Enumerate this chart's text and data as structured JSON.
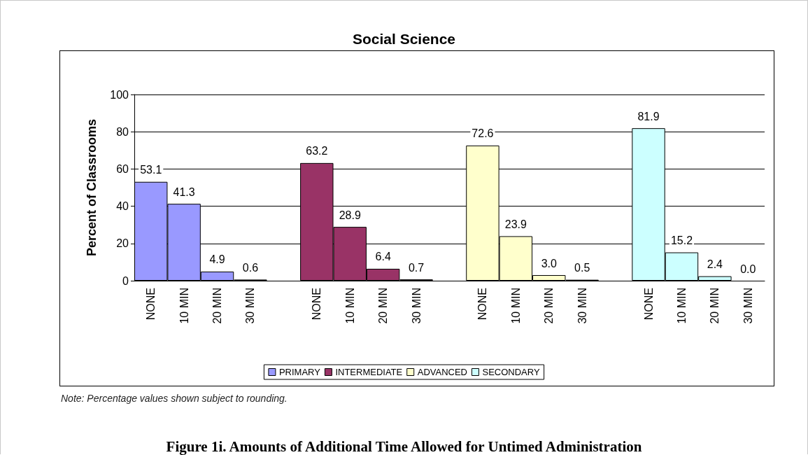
{
  "chart_data": {
    "type": "bar",
    "title": "Social Science",
    "ylabel": "Percent of Classrooms",
    "categories": [
      "NONE",
      "10 MIN",
      "20 MIN",
      "30 MIN",
      null,
      "NONE",
      "10 MIN",
      "20 MIN",
      "30 MIN",
      null,
      "NONE",
      "10 MIN",
      "20 MIN",
      "30 MIN",
      null,
      "NONE",
      "10 MIN",
      "20 MIN",
      "30 MIN"
    ],
    "series": [
      {
        "name": "PRIMARY",
        "color": "#9999ff",
        "values": [
          53.1,
          41.3,
          4.9,
          0.6,
          null,
          null,
          null,
          null,
          null,
          null,
          null,
          null,
          null,
          null,
          null,
          null,
          null,
          null,
          null
        ],
        "value_labels": [
          "53.1",
          "41.3",
          "4.9",
          "0.6",
          null,
          null,
          null,
          null,
          null,
          null,
          null,
          null,
          null,
          null,
          null,
          null,
          null,
          null,
          null
        ]
      },
      {
        "name": "INTERMEDIATE",
        "color": "#993366",
        "values": [
          null,
          null,
          null,
          null,
          null,
          63.2,
          28.9,
          6.4,
          0.7,
          null,
          null,
          null,
          null,
          null,
          null,
          null,
          null,
          null,
          null
        ],
        "value_labels": [
          null,
          null,
          null,
          null,
          null,
          "63.2",
          "28.9",
          "6.4",
          "0.7",
          null,
          null,
          null,
          null,
          null,
          null,
          null,
          null,
          null,
          null
        ]
      },
      {
        "name": "ADVANCED",
        "color": "#ffffcc",
        "values": [
          null,
          null,
          null,
          null,
          null,
          null,
          null,
          null,
          null,
          null,
          72.6,
          23.9,
          3.0,
          0.5,
          null,
          null,
          null,
          null,
          null
        ],
        "value_labels": [
          null,
          null,
          null,
          null,
          null,
          null,
          null,
          null,
          null,
          null,
          "72.6",
          "23.9",
          "3.0",
          "0.5",
          null,
          null,
          null,
          null,
          null
        ]
      },
      {
        "name": "SECONDARY",
        "color": "#ccffff",
        "values": [
          null,
          null,
          null,
          null,
          null,
          null,
          null,
          null,
          null,
          null,
          null,
          null,
          null,
          null,
          null,
          81.9,
          15.2,
          2.4,
          0.0
        ],
        "value_labels": [
          null,
          null,
          null,
          null,
          null,
          null,
          null,
          null,
          null,
          null,
          null,
          null,
          null,
          null,
          null,
          "81.9",
          "15.2",
          "2.4",
          "0.0"
        ]
      }
    ],
    "stacked": true,
    "ylim": [
      0,
      100
    ],
    "yticks": [
      0,
      20,
      40,
      60,
      80,
      100
    ],
    "grid": "y",
    "legend": "bottom",
    "annotations": [
      "Note:  Percentage values shown subject to rounding.",
      "Figure 1i.  Amounts of Additional Time Allowed for Untimed Administration"
    ]
  }
}
